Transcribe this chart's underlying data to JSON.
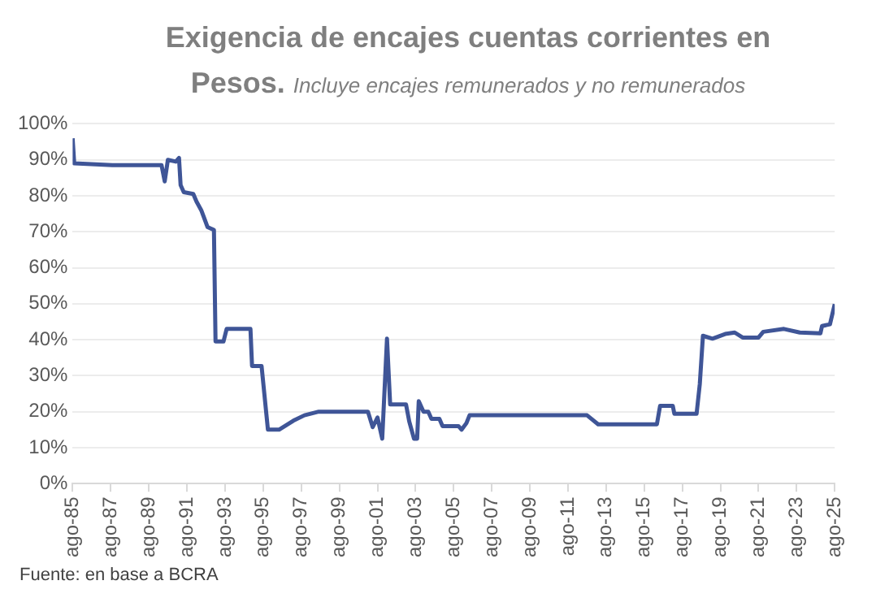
{
  "chart_data": {
    "type": "line",
    "title": "Exigencia de encajes cuentas corrientes en Pesos.",
    "subtitle": "Incluye encajes remunerados y no remunerados",
    "series": [
      {
        "color": "#3f5597",
        "x": [
          "1985-08",
          "1985-09",
          "1987-09",
          "1990-04",
          "1990-06",
          "1990-08",
          "1991-01",
          "1991-03",
          "1991-04",
          "1991-06",
          "1991-12",
          "1992-02",
          "1992-05",
          "1992-09",
          "1993-01",
          "1993-02",
          "1993-07",
          "1993-09",
          "1994-12",
          "1995-01",
          "1995-07",
          "1995-11",
          "1996-06",
          "1997-03",
          "1997-10",
          "1998-07",
          "2001-02",
          "2001-05",
          "2001-08",
          "2001-11",
          "2002-02",
          "2002-04",
          "2003-02",
          "2003-04",
          "2003-07",
          "2003-09",
          "2003-10",
          "2004-01",
          "2004-04",
          "2004-06",
          "2004-11",
          "2005-01",
          "2005-11",
          "2006-01",
          "2006-04",
          "2006-06",
          "2012-08",
          "2013-03",
          "2016-04",
          "2016-06",
          "2017-02",
          "2017-03",
          "2018-05",
          "2018-07",
          "2018-09",
          "2019-03",
          "2019-11",
          "2020-05",
          "2020-10",
          "2021-08",
          "2021-11",
          "2022-12",
          "2023-10",
          "2024-11",
          "2024-12",
          "2025-05",
          "2025-08"
        ],
        "values": [
          96,
          89,
          88.5,
          88.5,
          84,
          90,
          89.5,
          90.5,
          83,
          81,
          80.5,
          78.4,
          76,
          71.3,
          70.5,
          39.5,
          39.5,
          43,
          43,
          32.7,
          32.7,
          15,
          15,
          17.5,
          19,
          20,
          20,
          15.7,
          18.4,
          12.5,
          40.3,
          22,
          22,
          17.3,
          12.5,
          12.5,
          22.9,
          20,
          20,
          18,
          18,
          16,
          16,
          15,
          16.8,
          19,
          19,
          16.5,
          16.5,
          21.6,
          21.6,
          19.4,
          19.4,
          27.6,
          41.1,
          40.3,
          41.6,
          42,
          40.6,
          40.6,
          42.2,
          43,
          42,
          41.8,
          43.8,
          44.3,
          49.9
        ]
      }
    ],
    "xlim": [
      "1985-08",
      "2025-08"
    ],
    "xticks": [
      {
        "value": "1985-08",
        "label": "ago-85"
      },
      {
        "value": "1987-08",
        "label": "ago-87"
      },
      {
        "value": "1989-08",
        "label": "ago-89"
      },
      {
        "value": "1991-08",
        "label": "ago-91"
      },
      {
        "value": "1993-08",
        "label": "ago-93"
      },
      {
        "value": "1995-08",
        "label": "ago-95"
      },
      {
        "value": "1997-08",
        "label": "ago-97"
      },
      {
        "value": "1999-08",
        "label": "ago-99"
      },
      {
        "value": "2001-08",
        "label": "ago-01"
      },
      {
        "value": "2003-08",
        "label": "ago-03"
      },
      {
        "value": "2005-08",
        "label": "ago-05"
      },
      {
        "value": "2007-08",
        "label": "ago-07"
      },
      {
        "value": "2009-08",
        "label": "ago-09"
      },
      {
        "value": "2011-08",
        "label": "ago-11"
      },
      {
        "value": "2013-08",
        "label": "ago-13"
      },
      {
        "value": "2015-08",
        "label": "ago-15"
      },
      {
        "value": "2017-08",
        "label": "ago-17"
      },
      {
        "value": "2019-08",
        "label": "ago-19"
      },
      {
        "value": "2021-08",
        "label": "ago-21"
      },
      {
        "value": "2023-08",
        "label": "ago-23"
      },
      {
        "value": "2025-08",
        "label": "ago-25"
      }
    ],
    "ylim": [
      0,
      100
    ],
    "yticks": [
      {
        "value": 0,
        "label": "0%"
      },
      {
        "value": 10,
        "label": "10%"
      },
      {
        "value": 20,
        "label": "20%"
      },
      {
        "value": 30,
        "label": "30%"
      },
      {
        "value": 40,
        "label": "40%"
      },
      {
        "value": 50,
        "label": "50%"
      },
      {
        "value": 60,
        "label": "60%"
      },
      {
        "value": 70,
        "label": "70%"
      },
      {
        "value": 80,
        "label": "80%"
      },
      {
        "value": 90,
        "label": "90%"
      },
      {
        "value": 100,
        "label": "100%"
      }
    ],
    "grid": "y",
    "annotations": [
      "Fuente: en base a BCRA"
    ]
  }
}
